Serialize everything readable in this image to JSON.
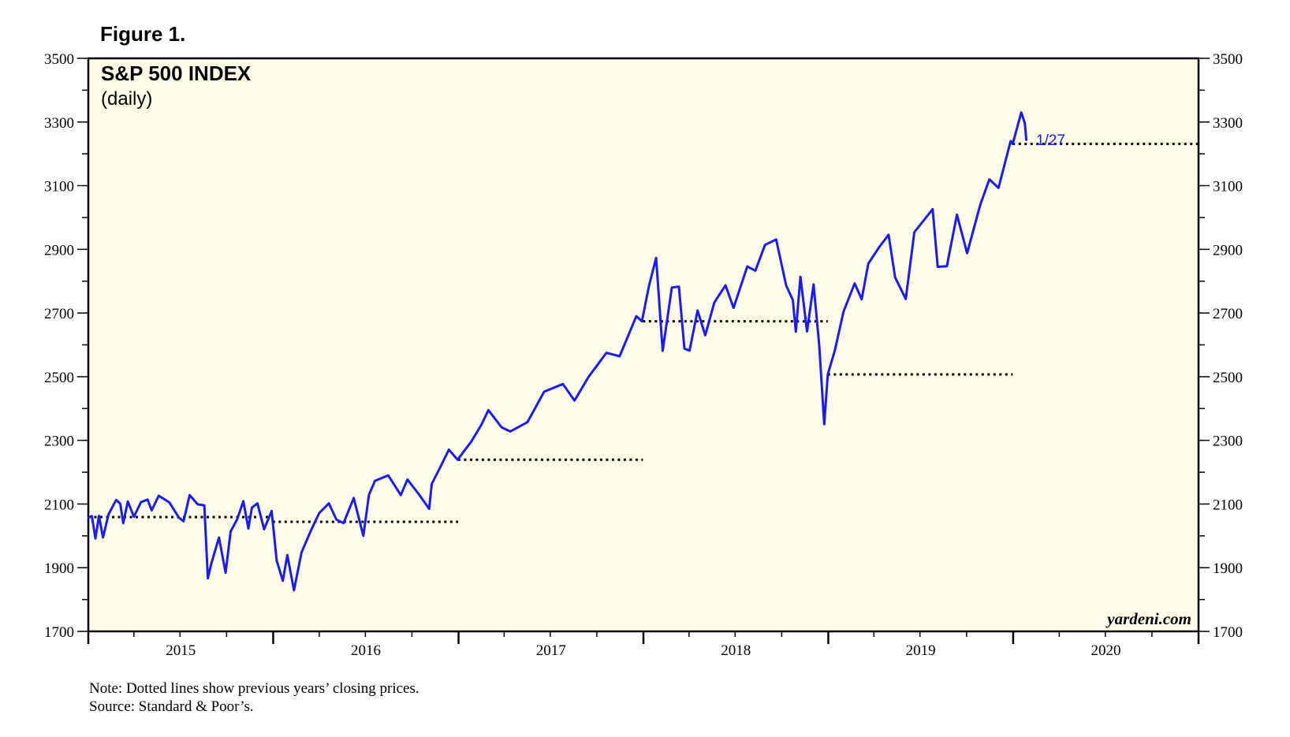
{
  "figure_label": "Figure 1.",
  "notes": {
    "note": "Note: Dotted lines show previous years’ closing prices.",
    "source": "Source: Standard & Poor’s."
  },
  "colors": {
    "background": "#ffffff",
    "plot_background": "#fefee8",
    "series": "#1a1aff",
    "reference_lines": "#000000"
  },
  "chart_data": {
    "type": "line",
    "title": "S&P 500 INDEX",
    "subtitle": "(daily)",
    "watermark": "yardeni.com",
    "ylim": [
      1700,
      3500
    ],
    "y_ticks": [
      1700,
      1900,
      2100,
      2300,
      2500,
      2700,
      2900,
      3100,
      3300,
      3500
    ],
    "y_tick_labels": [
      "1700",
      "1900",
      "2100",
      "2300",
      "2500",
      "2700",
      "2900",
      "3100",
      "3300",
      "3500"
    ],
    "y_axes": [
      "left",
      "right"
    ],
    "xlim": [
      "2015-01-01",
      "2021-01-01"
    ],
    "x_category_labels": [
      "2015",
      "2016",
      "2017",
      "2018",
      "2019",
      "2020"
    ],
    "grid": false,
    "last_point_label": "1/27",
    "reference_lines": [
      {
        "x_start": "2015-01-01",
        "x_end": "2015-12-31",
        "y": 2059
      },
      {
        "x_start": "2015-12-31",
        "x_end": "2016-12-31",
        "y": 2044
      },
      {
        "x_start": "2016-12-31",
        "x_end": "2017-12-31",
        "y": 2239
      },
      {
        "x_start": "2017-12-31",
        "x_end": "2018-12-31",
        "y": 2674
      },
      {
        "x_start": "2018-12-31",
        "x_end": "2019-12-31",
        "y": 2507
      },
      {
        "x_start": "2019-12-31",
        "x_end": "2020-12-31",
        "y": 3231
      }
    ],
    "series": [
      {
        "values": [
          [
            "2015-01-02",
            2058
          ],
          [
            "2015-01-08",
            2062
          ],
          [
            "2015-01-15",
            1992
          ],
          [
            "2015-01-22",
            2063
          ],
          [
            "2015-01-30",
            1995
          ],
          [
            "2015-02-10",
            2068
          ],
          [
            "2015-02-25",
            2113
          ],
          [
            "2015-03-05",
            2101
          ],
          [
            "2015-03-11",
            2040
          ],
          [
            "2015-03-20",
            2108
          ],
          [
            "2015-04-01",
            2060
          ],
          [
            "2015-04-15",
            2106
          ],
          [
            "2015-04-28",
            2114
          ],
          [
            "2015-05-06",
            2080
          ],
          [
            "2015-05-20",
            2126
          ],
          [
            "2015-06-10",
            2105
          ],
          [
            "2015-06-29",
            2057
          ],
          [
            "2015-07-08",
            2046
          ],
          [
            "2015-07-20",
            2128
          ],
          [
            "2015-08-05",
            2099
          ],
          [
            "2015-08-18",
            2096
          ],
          [
            "2015-08-25",
            1867
          ],
          [
            "2015-09-01",
            1914
          ],
          [
            "2015-09-16",
            1995
          ],
          [
            "2015-09-29",
            1884
          ],
          [
            "2015-10-09",
            2014
          ],
          [
            "2015-10-22",
            2052
          ],
          [
            "2015-11-03",
            2109
          ],
          [
            "2015-11-13",
            2023
          ],
          [
            "2015-11-20",
            2089
          ],
          [
            "2015-12-01",
            2102
          ],
          [
            "2015-12-14",
            2021
          ],
          [
            "2015-12-29",
            2078
          ],
          [
            "2016-01-08",
            1922
          ],
          [
            "2016-01-20",
            1859
          ],
          [
            "2016-01-29",
            1940
          ],
          [
            "2016-02-11",
            1829
          ],
          [
            "2016-02-26",
            1948
          ],
          [
            "2016-03-15",
            2015
          ],
          [
            "2016-04-01",
            2072
          ],
          [
            "2016-04-20",
            2102
          ],
          [
            "2016-05-05",
            2051
          ],
          [
            "2016-05-19",
            2040
          ],
          [
            "2016-06-08",
            2119
          ],
          [
            "2016-06-27",
            2000
          ],
          [
            "2016-07-08",
            2129
          ],
          [
            "2016-07-20",
            2173
          ],
          [
            "2016-08-15",
            2190
          ],
          [
            "2016-09-09",
            2128
          ],
          [
            "2016-09-22",
            2177
          ],
          [
            "2016-10-14",
            2132
          ],
          [
            "2016-11-04",
            2085
          ],
          [
            "2016-11-09",
            2163
          ],
          [
            "2016-11-25",
            2213
          ],
          [
            "2016-12-13",
            2271
          ],
          [
            "2016-12-30",
            2239
          ],
          [
            "2017-01-26",
            2296
          ],
          [
            "2017-02-15",
            2349
          ],
          [
            "2017-03-01",
            2395
          ],
          [
            "2017-03-27",
            2341
          ],
          [
            "2017-04-13",
            2328
          ],
          [
            "2017-05-17",
            2357
          ],
          [
            "2017-06-19",
            2453
          ],
          [
            "2017-07-26",
            2477
          ],
          [
            "2017-08-18",
            2425
          ],
          [
            "2017-09-15",
            2500
          ],
          [
            "2017-10-20",
            2575
          ],
          [
            "2017-11-15",
            2564
          ],
          [
            "2017-12-18",
            2690
          ],
          [
            "2017-12-29",
            2674
          ],
          [
            "2018-01-12",
            2786
          ],
          [
            "2018-01-26",
            2873
          ],
          [
            "2018-02-08",
            2581
          ],
          [
            "2018-02-26",
            2780
          ],
          [
            "2018-03-12",
            2783
          ],
          [
            "2018-03-23",
            2588
          ],
          [
            "2018-04-02",
            2582
          ],
          [
            "2018-04-18",
            2708
          ],
          [
            "2018-05-03",
            2630
          ],
          [
            "2018-05-21",
            2733
          ],
          [
            "2018-06-12",
            2787
          ],
          [
            "2018-06-28",
            2716
          ],
          [
            "2018-07-25",
            2846
          ],
          [
            "2018-08-10",
            2833
          ],
          [
            "2018-08-29",
            2914
          ],
          [
            "2018-09-20",
            2931
          ],
          [
            "2018-10-10",
            2786
          ],
          [
            "2018-10-23",
            2741
          ],
          [
            "2018-10-29",
            2641
          ],
          [
            "2018-11-07",
            2814
          ],
          [
            "2018-11-20",
            2642
          ],
          [
            "2018-12-03",
            2790
          ],
          [
            "2018-12-14",
            2600
          ],
          [
            "2018-12-24",
            2351
          ],
          [
            "2018-12-31",
            2507
          ],
          [
            "2019-01-14",
            2583
          ],
          [
            "2019-01-31",
            2704
          ],
          [
            "2019-02-22",
            2793
          ],
          [
            "2019-03-08",
            2743
          ],
          [
            "2019-03-21",
            2855
          ],
          [
            "2019-04-12",
            2908
          ],
          [
            "2019-04-30",
            2946
          ],
          [
            "2019-05-13",
            2812
          ],
          [
            "2019-06-03",
            2744
          ],
          [
            "2019-06-20",
            2954
          ],
          [
            "2019-07-26",
            3026
          ],
          [
            "2019-08-05",
            2845
          ],
          [
            "2019-08-23",
            2847
          ],
          [
            "2019-09-12",
            3009
          ],
          [
            "2019-10-02",
            2888
          ],
          [
            "2019-10-28",
            3040
          ],
          [
            "2019-11-15",
            3120
          ],
          [
            "2019-12-03",
            3093
          ],
          [
            "2019-12-27",
            3240
          ],
          [
            "2019-12-31",
            3231
          ],
          [
            "2020-01-17",
            3330
          ],
          [
            "2020-01-24",
            3296
          ],
          [
            "2020-01-27",
            3244
          ]
        ]
      }
    ]
  }
}
